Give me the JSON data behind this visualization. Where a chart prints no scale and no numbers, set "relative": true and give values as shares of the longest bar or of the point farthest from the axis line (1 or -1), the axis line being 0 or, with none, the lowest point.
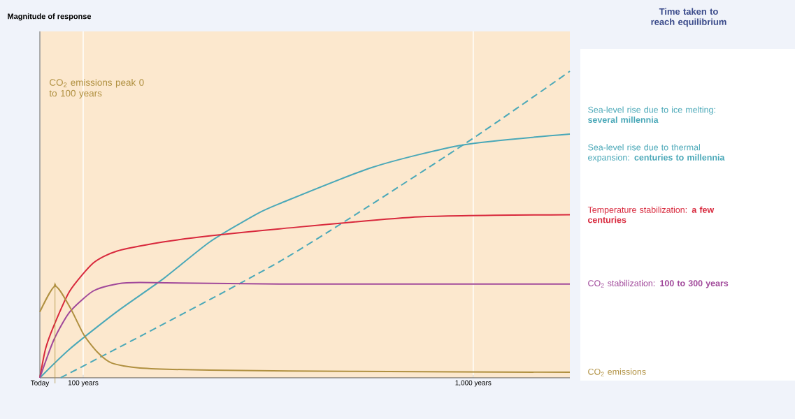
{
  "chart_data": {
    "type": "line",
    "relative": true,
    "legend_title": "Time taken to reach equilibrium",
    "xlim": [
      0,
      1223
    ],
    "xticks": [
      {
        "value": 0,
        "label": "Today"
      },
      {
        "value": 100,
        "label": "100 years"
      },
      {
        "value": 1000,
        "label": "1,000 years"
      }
    ],
    "grid": "x",
    "marker": "none",
    "annotations": [
      "Magnitude of response",
      "CO$_{2}$ emissions peak 0 to 100 years"
    ],
    "series": [
      {
        "name": "Sea-level rise due to ice melting: **several millennia**",
        "color": "#4aa8b8",
        "line_style": "dashed",
        "x": [
          48,
          553,
          977,
          1223
        ],
        "values": [
          0,
          0.379,
          0.76,
          1.0
        ]
      },
      {
        "name": "Sea-level rise due to thermal expansion: **centuries to millennia**",
        "color": "#4aa8b8",
        "x": [
          0,
          69,
          177,
          284,
          392,
          500,
          553,
          768,
          977,
          1223
        ],
        "values": [
          0,
          0.094,
          0.215,
          0.322,
          0.443,
          0.534,
          0.568,
          0.687,
          0.76,
          0.795
        ]
      },
      {
        "name": "Temperature stabilization: **a few centuries**",
        "color": "#d8283c",
        "x": [
          0,
          13,
          32,
          69,
          123,
          177,
          284,
          392,
          553,
          876,
          1223
        ],
        "values": [
          0,
          0.094,
          0.169,
          0.283,
          0.374,
          0.413,
          0.443,
          0.463,
          0.486,
          0.525,
          0.532
        ]
      },
      {
        "name": "CO$_{2}$ stabilization: **100 to 300 years**",
        "color": "#a0489a",
        "x": [
          0,
          32,
          69,
          123,
          177,
          231,
          553,
          1223
        ],
        "values": [
          0,
          0.123,
          0.215,
          0.283,
          0.306,
          0.311,
          0.306,
          0.306
        ]
      },
      {
        "name": "CO$_{2}$ emissions",
        "color": "#b09040",
        "x": [
          0,
          35,
          69,
          102,
          134,
          166,
          231,
          392,
          715,
          1223
        ],
        "values": [
          0.215,
          0.299,
          0.231,
          0.139,
          0.082,
          0.048,
          0.032,
          0.025,
          0.021,
          0.018
        ]
      }
    ]
  }
}
